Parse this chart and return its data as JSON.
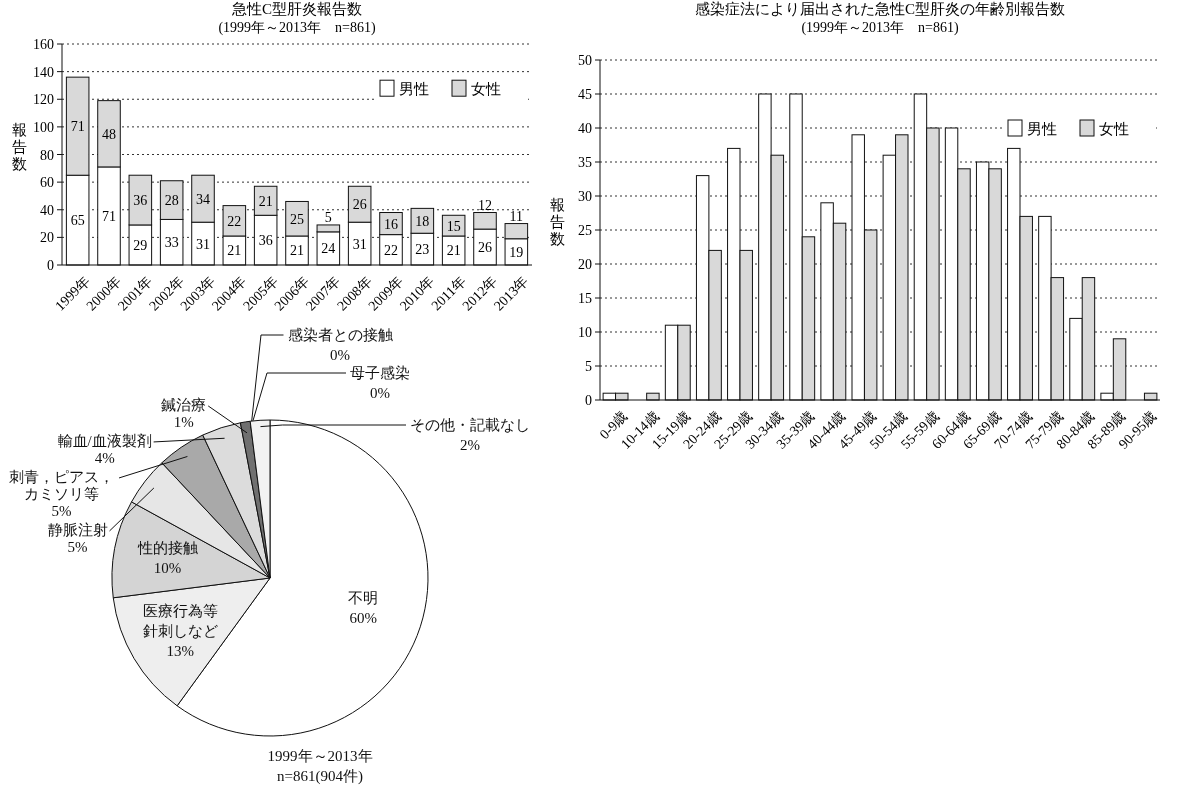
{
  "chart_data": [
    {
      "type": "bar",
      "title": "急性C型肝炎報告数",
      "subtitle": "(1999年～2013年　n=861)",
      "ylabel": "報告数",
      "stacked": true,
      "data_labels": true,
      "grid": "y",
      "legend": "top right",
      "categories": [
        "1999年",
        "2000年",
        "2001年",
        "2002年",
        "2003年",
        "2004年",
        "2005年",
        "2006年",
        "2007年",
        "2008年",
        "2009年",
        "2010年",
        "2011年",
        "2012年",
        "2013年"
      ],
      "series": [
        {
          "name": "男性",
          "color": "#ffffff",
          "values": [
            65,
            71,
            29,
            33,
            31,
            21,
            36,
            21,
            24,
            31,
            22,
            23,
            21,
            26,
            19
          ]
        },
        {
          "name": "女性",
          "color": "#d9d9d9",
          "values": [
            71,
            48,
            36,
            28,
            34,
            22,
            21,
            25,
            5,
            26,
            16,
            18,
            15,
            12,
            11
          ]
        }
      ],
      "ylim": [
        0,
        160
      ],
      "yticks": [
        0,
        20,
        40,
        60,
        80,
        100,
        120,
        140,
        160
      ]
    },
    {
      "type": "pie",
      "categories": [
        "不明",
        "医療行為等針刺しなど",
        "性的接触",
        "静脈注射",
        "刺青，ピアス，カミソリ等",
        "輸血/血液製剤",
        "鍼治療",
        "感染者との接触",
        "母子感染",
        "その他・記載なし"
      ],
      "values": [
        60,
        13,
        10,
        5,
        5,
        4,
        1,
        0,
        0,
        2
      ],
      "value_labels": [
        "60%",
        "13%",
        "10%",
        "5%",
        "5%",
        "4%",
        "1%",
        "0%",
        "0%",
        "2%"
      ],
      "colors": [
        "#ffffff",
        "#eeeeee",
        "#d4d4d4",
        "#e6e6e6",
        "#a9a9a9",
        "#dcdcdc",
        "#707070",
        "#8a8a8a",
        "#8a8a8a",
        "#f2f2f2"
      ],
      "annotations": [
        "1999年～2013年",
        "n=861(904件)"
      ]
    },
    {
      "type": "bar",
      "title": "感染症法により届出された急性C型肝炎の年齢別報告数",
      "subtitle": "(1999年～2013年　n=861)",
      "ylabel": "報告数",
      "grid": "y",
      "legend": "top right",
      "categories": [
        "0-9歳",
        "10-14歳",
        "15-19歳",
        "20-24歳",
        "25-29歳",
        "30-34歳",
        "35-39歳",
        "40-44歳",
        "45-49歳",
        "50-54歳",
        "55-59歳",
        "60-64歳",
        "65-69歳",
        "70-74歳",
        "75-79歳",
        "80-84歳",
        "85-89歳",
        "90-95歳"
      ],
      "series": [
        {
          "name": "男性",
          "color": "#ffffff",
          "values": [
            1,
            0,
            11,
            33,
            37,
            45,
            45,
            29,
            39,
            36,
            45,
            40,
            35,
            37,
            27,
            12,
            1,
            0
          ]
        },
        {
          "name": "女性",
          "color": "#d9d9d9",
          "values": [
            1,
            1,
            11,
            22,
            22,
            36,
            24,
            26,
            25,
            39,
            40,
            34,
            34,
            27,
            18,
            18,
            9,
            1
          ]
        }
      ],
      "ylim": [
        0,
        50
      ],
      "yticks": [
        0,
        5,
        10,
        15,
        20,
        25,
        30,
        35,
        40,
        45,
        50
      ]
    }
  ]
}
